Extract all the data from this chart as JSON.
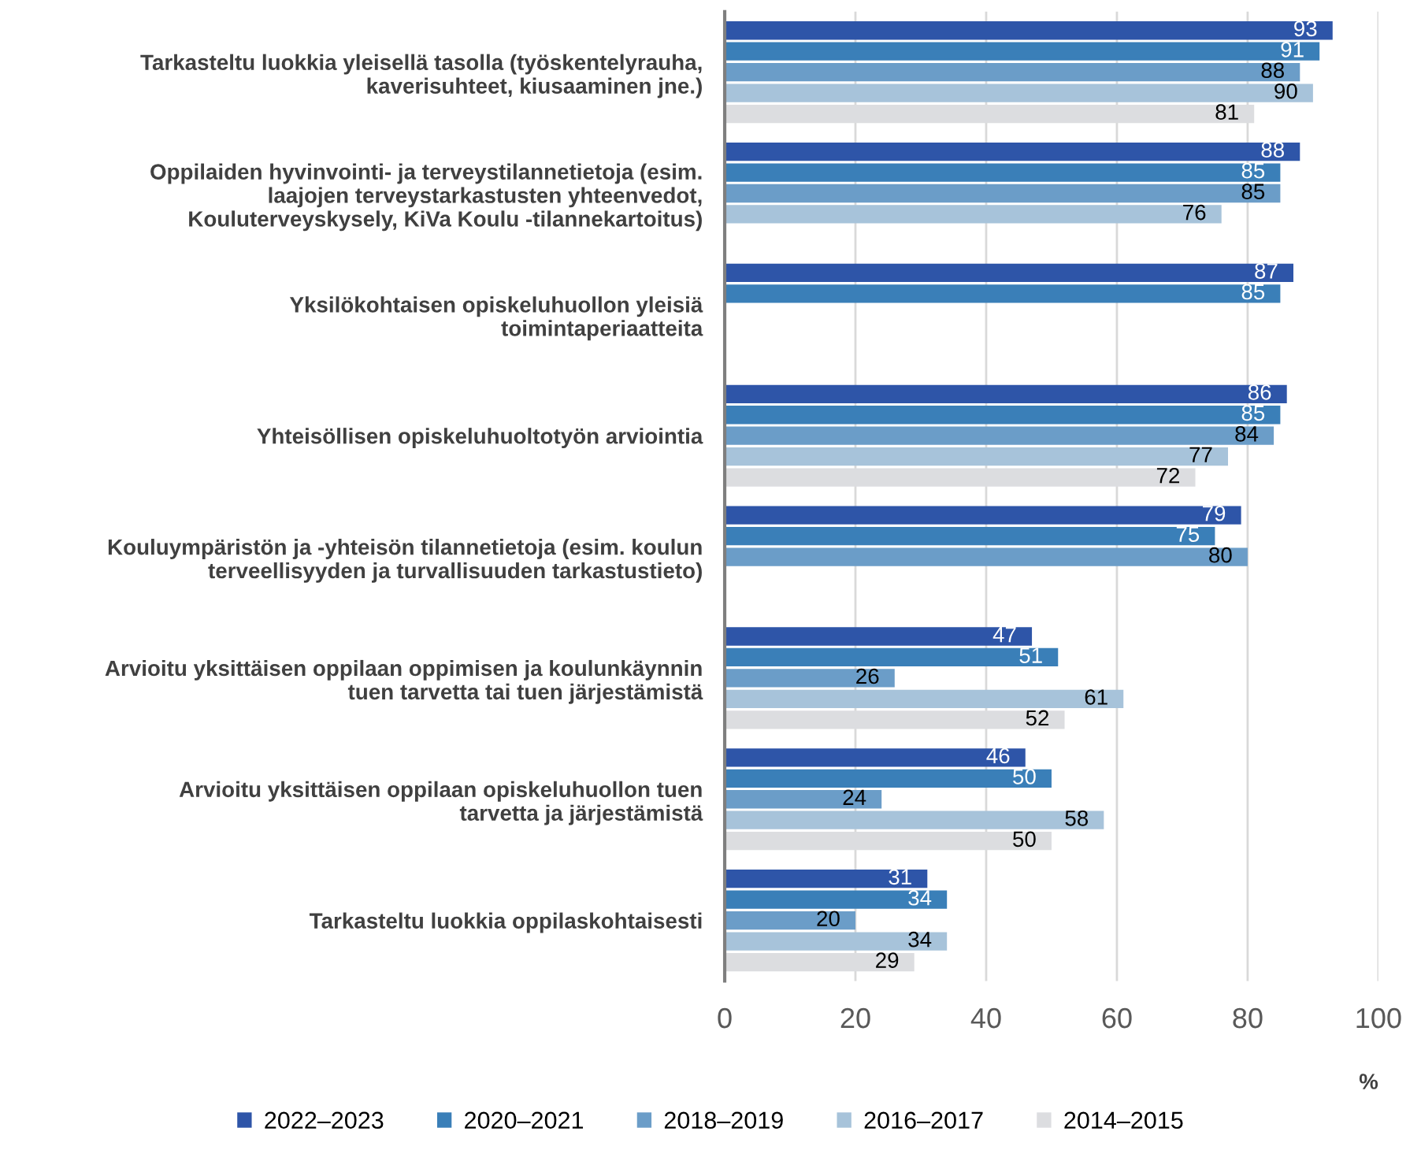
{
  "chart_data": {
    "type": "bar",
    "orientation": "horizontal",
    "categories": [
      "Tarkasteltu luokkia yleisellä tasolla (työskentelyrauha,\nkaverisuhteet, kiusaaminen jne.)",
      "Oppilaiden hyvinvointi- ja terveystilannetietoja (esim.\nlaajojen terveystarkastusten yhteenvedot,\nKouluterveyskysely, KiVa Koulu -tilannekartoitus)",
      "Yksilökohtaisen opiskeluhuollon yleisiä\ntoimintaperiaatteita",
      "Yhteisöllisen opiskeluhuoltotyön arviointia",
      "Kouluympäristön ja -yhteisön tilannetietoja (esim. koulun\nterveellisyyden ja turvallisuuden tarkastustieto)",
      "Arvioitu yksittäisen oppilaan oppimisen ja koulunkäynnin\ntuen tarvetta tai tuen järjestämistä",
      "Arvioitu yksittäisen oppilaan opiskeluhuollon tuen\ntarvetta ja järjestämistä",
      "Tarkasteltu luokkia oppilaskohtaisesti"
    ],
    "series": [
      {
        "name": "2022–2023",
        "color": "#2e55a8",
        "values": [
          93,
          88,
          87,
          86,
          79,
          47,
          46,
          31
        ]
      },
      {
        "name": "2020–2021",
        "color": "#3a7fb8",
        "values": [
          91,
          85,
          85,
          85,
          75,
          51,
          50,
          34
        ]
      },
      {
        "name": "2018–2019",
        "color": "#6b9dc8",
        "values": [
          88,
          85,
          null,
          84,
          80,
          26,
          24,
          20
        ]
      },
      {
        "name": "2016–2017",
        "color": "#a7c3da",
        "values": [
          90,
          76,
          null,
          77,
          null,
          61,
          58,
          34
        ]
      },
      {
        "name": "2014–2015",
        "color": "#dcdde0",
        "values": [
          81,
          null,
          null,
          72,
          null,
          52,
          50,
          29
        ]
      }
    ],
    "xlim": [
      0,
      100
    ],
    "xticks": [
      0,
      20,
      40,
      60,
      80,
      100
    ],
    "xlabel": "%",
    "grid": "x",
    "legend": "bottom",
    "data_labels": true
  }
}
